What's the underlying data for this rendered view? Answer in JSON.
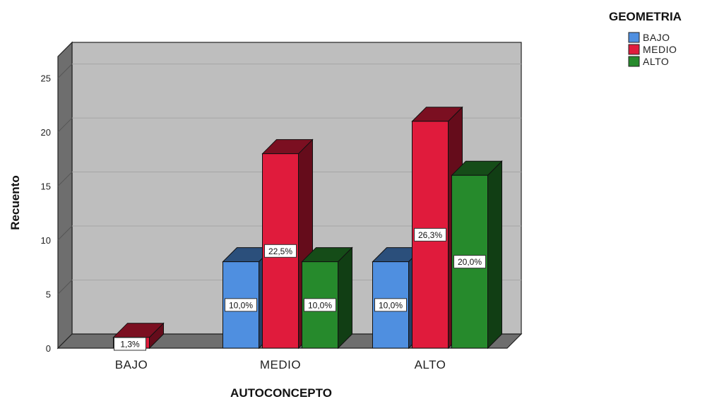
{
  "chart_data": {
    "type": "bar",
    "title": "",
    "xlabel": "AUTOCONCEPTO",
    "ylabel": "Recuento",
    "ylim": [
      0,
      27
    ],
    "yticks": [
      0,
      5,
      10,
      15,
      20,
      25
    ],
    "grid": true,
    "legend_position": "top-right",
    "legend_title": "GEOMETRIA",
    "categories": [
      "BAJO",
      "MEDIO",
      "ALTO"
    ],
    "series": [
      {
        "name": "BAJO",
        "color": "#4F8FE0",
        "values": [
          0,
          8,
          8
        ],
        "labels": [
          "",
          "10,0%",
          "10,0%"
        ]
      },
      {
        "name": "MEDIO",
        "color": "#E01B3C",
        "values": [
          1,
          18,
          21
        ],
        "labels": [
          "1,3%",
          "22,5%",
          "26,3%"
        ]
      },
      {
        "name": "ALTO",
        "color": "#268A2C",
        "values": [
          0,
          8,
          16
        ],
        "labels": [
          "",
          "10,0%",
          "20,0%"
        ]
      }
    ]
  }
}
